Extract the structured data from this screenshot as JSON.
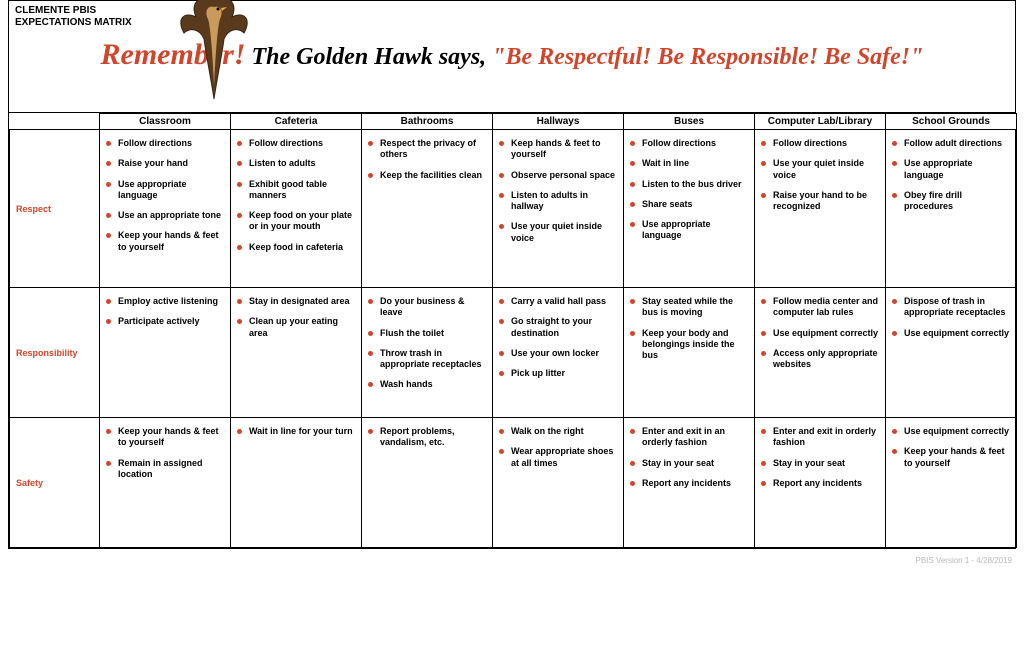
{
  "doc_title": "CLEMENTE PBIS\nEXPECTATIONS MATRIX",
  "slogan_remember": "Remember!",
  "slogan_mid": " The Golden Hawk says, ",
  "slogan_quote": "\"Be Respectful! Be Responsible! Be Safe!\"",
  "footer": "PBIS Version 1 - 4/28/2019",
  "colors": {
    "accent": "#d0452b",
    "text": "#000000",
    "border": "#000000",
    "background": "#ffffff"
  },
  "typography": {
    "body_font": "Verdana",
    "slogan_font": "Brush Script / cursive",
    "header_fontsize_pt": 10,
    "cell_fontsize_pt": 9,
    "slogan_fontsize_pt": 24,
    "remember_fontsize_pt": 30
  },
  "columns": [
    "Classroom",
    "Cafeteria",
    "Bathrooms",
    "Hallways",
    "Buses",
    "Computer Lab/Library",
    "School Grounds"
  ],
  "rows": [
    {
      "label": "Respect",
      "min_height": 158,
      "cells": [
        [
          "Follow directions",
          "Raise your hand",
          "Use appropriate language",
          "Use an appropriate tone",
          "Keep your hands & feet to yourself"
        ],
        [
          "Follow directions",
          "Listen to adults",
          "Exhibit good table manners",
          "Keep food on your plate or in your mouth",
          "Keep food in cafeteria"
        ],
        [
          "Respect the privacy of others",
          "Keep the facilities clean"
        ],
        [
          "Keep hands & feet to yourself",
          "Observe personal space",
          "Listen to adults in hallway",
          "Use your quiet inside voice"
        ],
        [
          "Follow directions",
          "Wait in line",
          "Listen to the bus driver",
          "Share seats",
          "Use appropriate language"
        ],
        [
          "Follow directions",
          "Use your quiet inside voice",
          "Raise your hand to be recognized"
        ],
        [
          "Follow adult directions",
          "Use appropriate language",
          "Obey fire drill procedures"
        ]
      ]
    },
    {
      "label": "Responsibility",
      "min_height": 130,
      "cells": [
        [
          "Employ active listening",
          "Participate actively"
        ],
        [
          "Stay in designated area",
          "Clean up your eating area"
        ],
        [
          "Do your business & leave",
          "Flush the toilet",
          "Throw trash in appropriate receptacles",
          "Wash hands"
        ],
        [
          "Carry a valid hall pass",
          "Go straight to your destination",
          "Use your own locker",
          "Pick up litter"
        ],
        [
          "Stay seated while the bus is moving",
          "Keep your body and belongings inside the bus"
        ],
        [
          "Follow media center and computer lab rules",
          "Use equipment correctly",
          "Access only appropriate websites"
        ],
        [
          "Dispose of trash in appropriate receptacles",
          "Use equipment correctly"
        ]
      ]
    },
    {
      "label": "Safety",
      "min_height": 130,
      "cells": [
        [
          "Keep your hands & feet to yourself",
          "Remain in assigned location"
        ],
        [
          "Wait in line for your turn"
        ],
        [
          "Report problems, vandalism, etc."
        ],
        [
          "Walk on the right",
          "Wear appropriate shoes at all times"
        ],
        [
          "Enter and exit in an orderly fashion",
          "Stay in your seat",
          "Report any incidents"
        ],
        [
          "Enter and exit in orderly fashion",
          "Stay in your seat",
          "Report any incidents"
        ],
        [
          "Use equipment correctly",
          "Keep your hands & feet to yourself"
        ]
      ]
    }
  ]
}
